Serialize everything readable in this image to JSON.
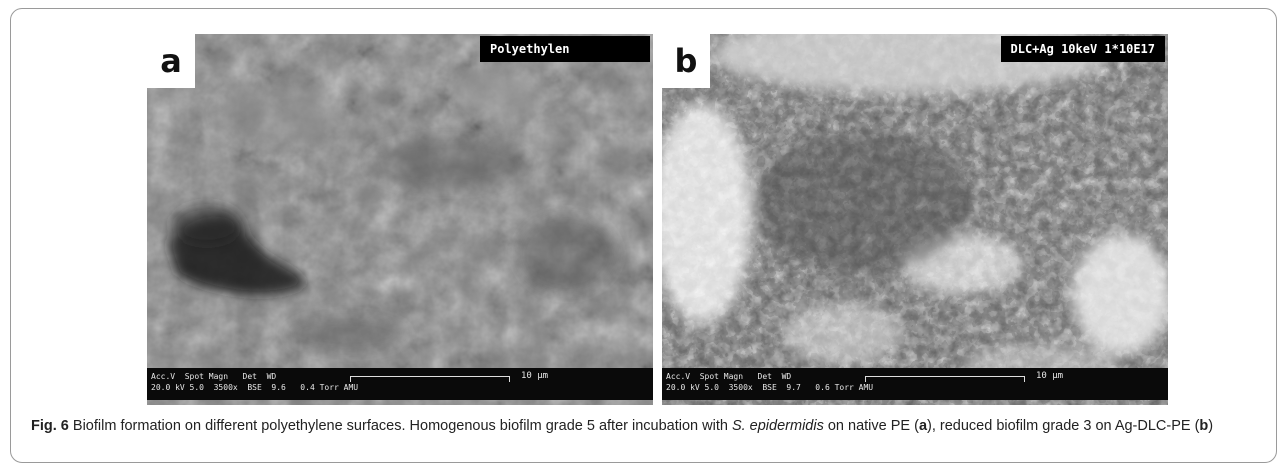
{
  "figure": {
    "panels": [
      {
        "letter": "a",
        "label": "Polyethylen",
        "databar": {
          "row1": "Acc.V  Spot Magn   Det  WD",
          "row2": "20.0 kV 5.0  3500x  BSE  9.6   0.4 Torr AMU",
          "scale": "10 µm"
        }
      },
      {
        "letter": "b",
        "label": "DLC+Ag 10keV 1*10E17",
        "databar": {
          "row1": "Acc.V  Spot Magn   Det  WD",
          "row2": "20.0 kV 5.0  3500x  BSE  9.7   0.6 Torr AMU",
          "scale": "10 µm"
        }
      }
    ],
    "caption": {
      "fig_label": "Fig. 6",
      "text_1": "  Biofilm formation on different polyethylene surfaces. Homogenous biofilm grade 5 after incubation with ",
      "species": "S. epidermidis",
      "text_2": " on native PE (",
      "ref_a": "a",
      "text_3": "), reduced biofilm grade 3 on Ag-DLC-PE (",
      "ref_b": "b",
      "text_4": ")"
    }
  },
  "colors": {
    "frame_border": "#9a9a9a",
    "panel_a_base": "#7d7d7d",
    "panel_b_base": "#5c5c5c"
  }
}
